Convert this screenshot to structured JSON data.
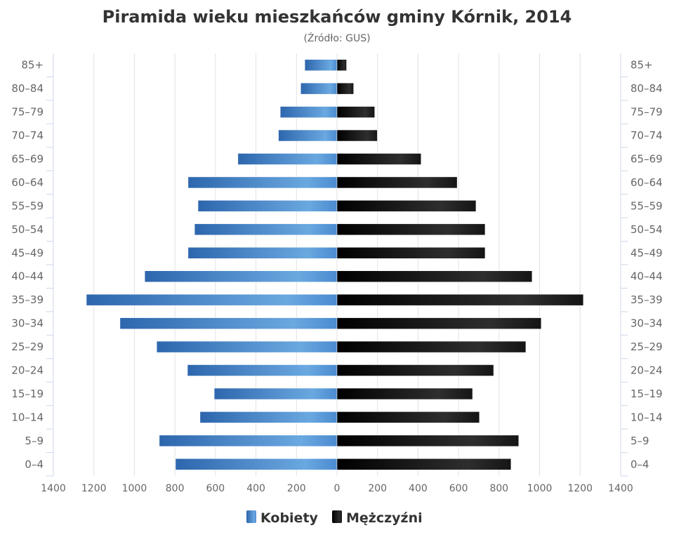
{
  "chart_data": {
    "type": "bar",
    "orientation": "horizontal-population-pyramid",
    "title": "Piramida wieku mieszkańców gminy Kórnik, 2014",
    "subtitle": "(Źródło: GUS)",
    "categories": [
      "0–4",
      "5–9",
      "10–14",
      "15–19",
      "20–24",
      "25–29",
      "30–34",
      "35–39",
      "40–44",
      "45–49",
      "50–54",
      "55–59",
      "60–64",
      "65–69",
      "70–74",
      "75–79",
      "80–84",
      "85+"
    ],
    "series": [
      {
        "name": "Kobiety",
        "color": "#3a7bc8",
        "values": [
          797,
          877,
          676,
          606,
          738,
          890,
          1071,
          1237,
          949,
          735,
          703,
          686,
          735,
          489,
          289,
          280,
          179,
          159
        ]
      },
      {
        "name": "Mężczyźni",
        "color": "#111111",
        "values": [
          859,
          897,
          703,
          669,
          773,
          932,
          1008,
          1216,
          963,
          731,
          731,
          686,
          593,
          415,
          199,
          186,
          82,
          47
        ]
      }
    ],
    "xticks": [
      "1400",
      "1200",
      "1000",
      "800",
      "600",
      "400",
      "200",
      "0",
      "200",
      "400",
      "600",
      "800",
      "1000",
      "1200",
      "1400"
    ],
    "xlim": [
      -1400,
      1400
    ],
    "grid": true,
    "legend": "bottom-center"
  }
}
